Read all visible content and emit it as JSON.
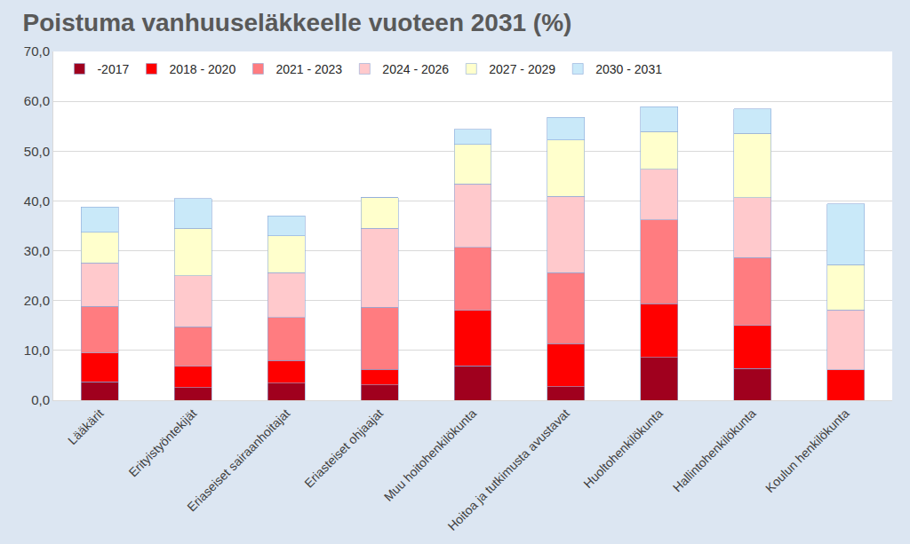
{
  "chart_data": {
    "type": "bar",
    "title": "Poistuma vanhuuseläkkeelle vuoteen 2031 (%)",
    "stacked": true,
    "grid": true,
    "legend": "top-left",
    "categories": [
      "Lääkärit",
      "Erityistyöntekijät",
      "Eriaseiset sairaanhoitajat",
      "Eriasteiset ohjaajat",
      "Muu hoitohenkilökunta",
      "Hoitoa ja tutkimusta avustavat",
      "Huoltohenkilökunta",
      "Hallintohenkilökunta",
      "Koulun henkilökunta"
    ],
    "series": [
      {
        "name": "-2017",
        "color": "#a0001e",
        "values": [
          3.7,
          2.5,
          3.4,
          3.1,
          6.9,
          2.7,
          8.6,
          6.4,
          0
        ]
      },
      {
        "name": "2018 - 2020",
        "color": "#ff0000",
        "values": [
          5.8,
          4.3,
          4.6,
          3.1,
          11.1,
          8.7,
          10.8,
          8.6,
          6.1
        ]
      },
      {
        "name": "2021 - 2023",
        "color": "#ff7c80",
        "values": [
          9.3,
          7.9,
          8.6,
          12.5,
          12.7,
          14.2,
          16.8,
          13.6,
          0
        ]
      },
      {
        "name": "2024 - 2026",
        "color": "#ffc9cc",
        "values": [
          8.8,
          10.3,
          9.0,
          15.8,
          12.7,
          15.3,
          10.2,
          12.1,
          12.0
        ]
      },
      {
        "name": "2027 - 2029",
        "color": "#ffffcc",
        "values": [
          6.1,
          9.5,
          7.4,
          6.2,
          7.9,
          11.3,
          7.5,
          12.9,
          9.1
        ]
      },
      {
        "name": "2030 - 2031",
        "color": "#c9e9f9",
        "values": [
          5.1,
          6.0,
          4.0,
          0,
          3.1,
          4.6,
          5.0,
          4.9,
          12.2
        ]
      }
    ],
    "ylim": [
      0,
      70
    ],
    "yticks": [
      {
        "value": 0,
        "label": "0,0"
      },
      {
        "value": 10,
        "label": "10,0"
      },
      {
        "value": 20,
        "label": "20,0"
      },
      {
        "value": 30,
        "label": "30,0"
      },
      {
        "value": 40,
        "label": "40,0"
      },
      {
        "value": 50,
        "label": "50,0"
      },
      {
        "value": 60,
        "label": "60,0"
      },
      {
        "value": 70,
        "label": "70,0"
      }
    ]
  }
}
